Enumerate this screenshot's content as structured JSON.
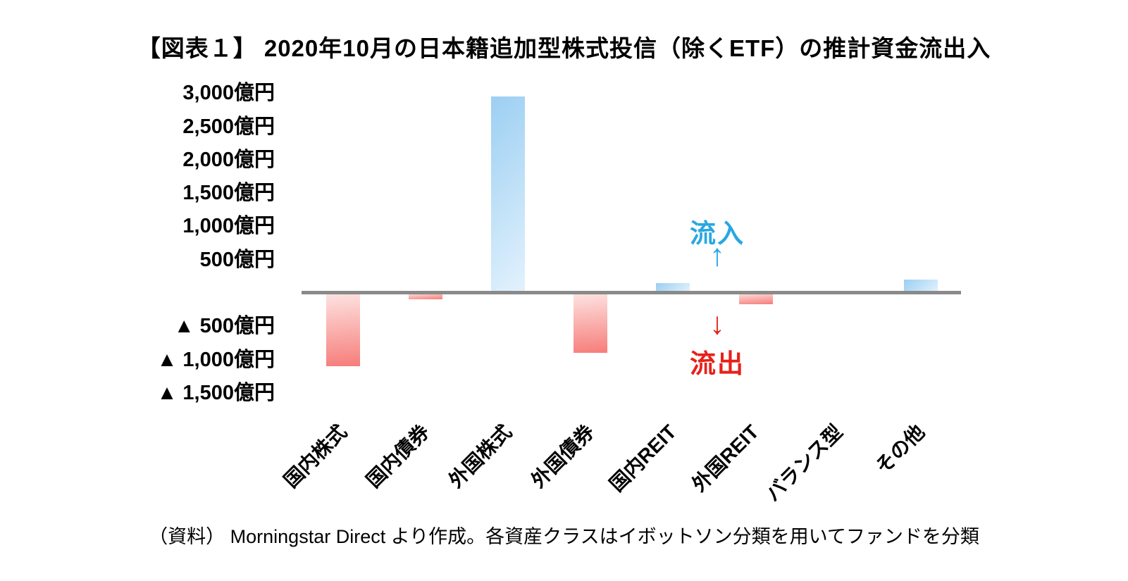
{
  "page": {
    "title": "【図表１】 2020年10月の日本籍追加型株式投信（除くETF）の推計資金流出入",
    "source_note": "（資料） Morningstar Direct より作成。各資産クラスはイボットソン分類を用いてファンドを分類"
  },
  "chart_data": {
    "type": "bar",
    "title": "【図表１】 2020年10月の日本籍追加型株式投信（除くETF）の推計資金流出入",
    "unit": "億円",
    "categories": [
      "国内株式",
      "国内債券",
      "外国株式",
      "外国債券",
      "国内REIT",
      "外国REIT",
      "バランス型",
      "その他"
    ],
    "values": [
      -1100,
      -100,
      2950,
      -900,
      150,
      -170,
      0,
      200
    ],
    "ylim": [
      -1500,
      3000
    ],
    "ytick_interval": 500,
    "yticks": [
      {
        "value": 3000,
        "label": "3,000億円"
      },
      {
        "value": 2500,
        "label": "2,500億円"
      },
      {
        "value": 2000,
        "label": "2,000億円"
      },
      {
        "value": 1500,
        "label": "1,500億円"
      },
      {
        "value": 1000,
        "label": "1,000億円"
      },
      {
        "value": 500,
        "label": "500億円"
      },
      {
        "value": -500,
        "label": "▲ 500億円"
      },
      {
        "value": -1000,
        "label": "▲ 1,000億円"
      },
      {
        "value": -1500,
        "label": "▲ 1,500億円"
      }
    ],
    "grid": false,
    "legend": false,
    "annotations": {
      "inflow_label": "流入",
      "inflow_arrow": "↑",
      "outflow_arrow": "↓",
      "outflow_label": "流出"
    },
    "colors": {
      "positive_bar_start": "#9ccff2",
      "positive_bar_end": "#e3f2fd",
      "negative_bar_start": "#fde4e2",
      "negative_bar_end": "#f67d7a",
      "axis_line": "#8a8a8a",
      "inflow_text": "#29a7e1",
      "outflow_text": "#e6211a"
    },
    "source_note": "（資料） Morningstar Direct より作成。各資産クラスはイボットソン分類を用いてファンドを分類"
  }
}
